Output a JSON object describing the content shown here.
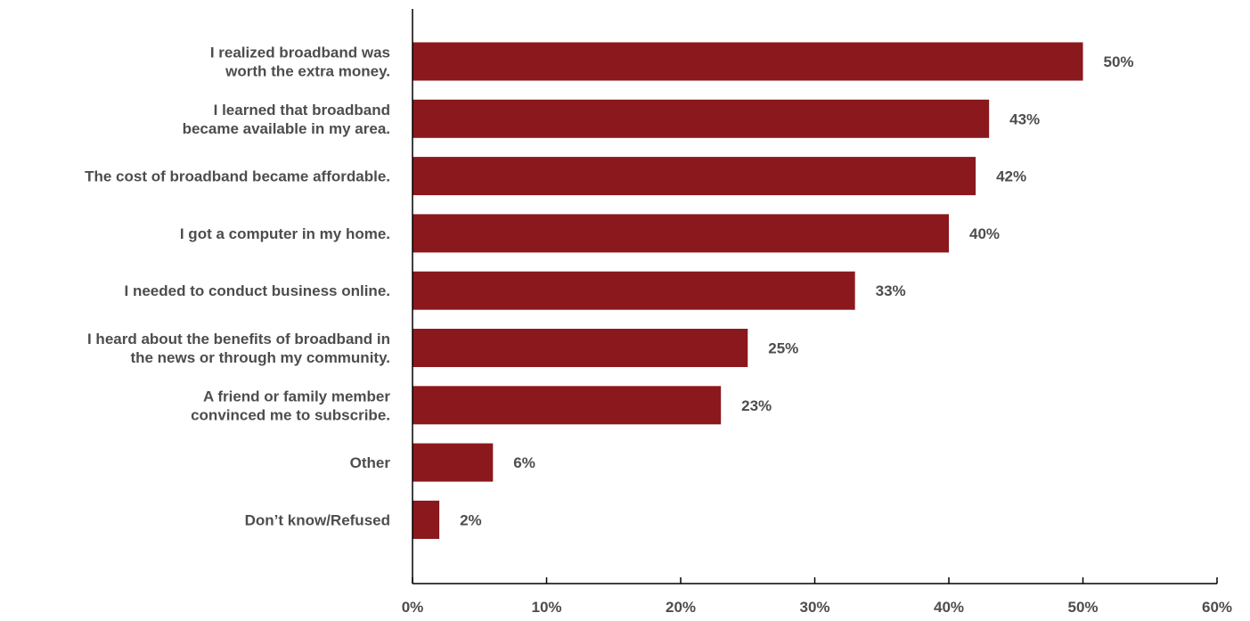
{
  "colors": {
    "bar": "#8b181d",
    "axis": "#000000",
    "text": "#4d4d4d"
  },
  "chart_data": {
    "type": "bar",
    "orientation": "horizontal",
    "title": "",
    "xlabel": "",
    "ylabel": "",
    "xlim": [
      0,
      60
    ],
    "grid": false,
    "legend": "none",
    "categories": [
      [
        "I realized broadband was",
        "worth the extra money."
      ],
      [
        "I learned that broadband",
        "became available in my area."
      ],
      [
        "The cost of broadband became affordable."
      ],
      [
        "I got a computer in my home."
      ],
      [
        "I needed to conduct business online."
      ],
      [
        "I heard about the benefits of broadband in",
        "the news or through my community."
      ],
      [
        "A friend or family member",
        "convinced me to subscribe."
      ],
      [
        "Other"
      ],
      [
        "Don’t know/Refused"
      ]
    ],
    "values": [
      50,
      43,
      42,
      40,
      33,
      25,
      23,
      6,
      2
    ],
    "value_labels": [
      "50%",
      "43%",
      "42%",
      "40%",
      "33%",
      "25%",
      "23%",
      "6%",
      "2%"
    ],
    "ticks": [
      0,
      10,
      20,
      30,
      40,
      50,
      60
    ],
    "tick_labels": [
      "0%",
      "10%",
      "20%",
      "30%",
      "40%",
      "50%",
      "60%"
    ]
  }
}
